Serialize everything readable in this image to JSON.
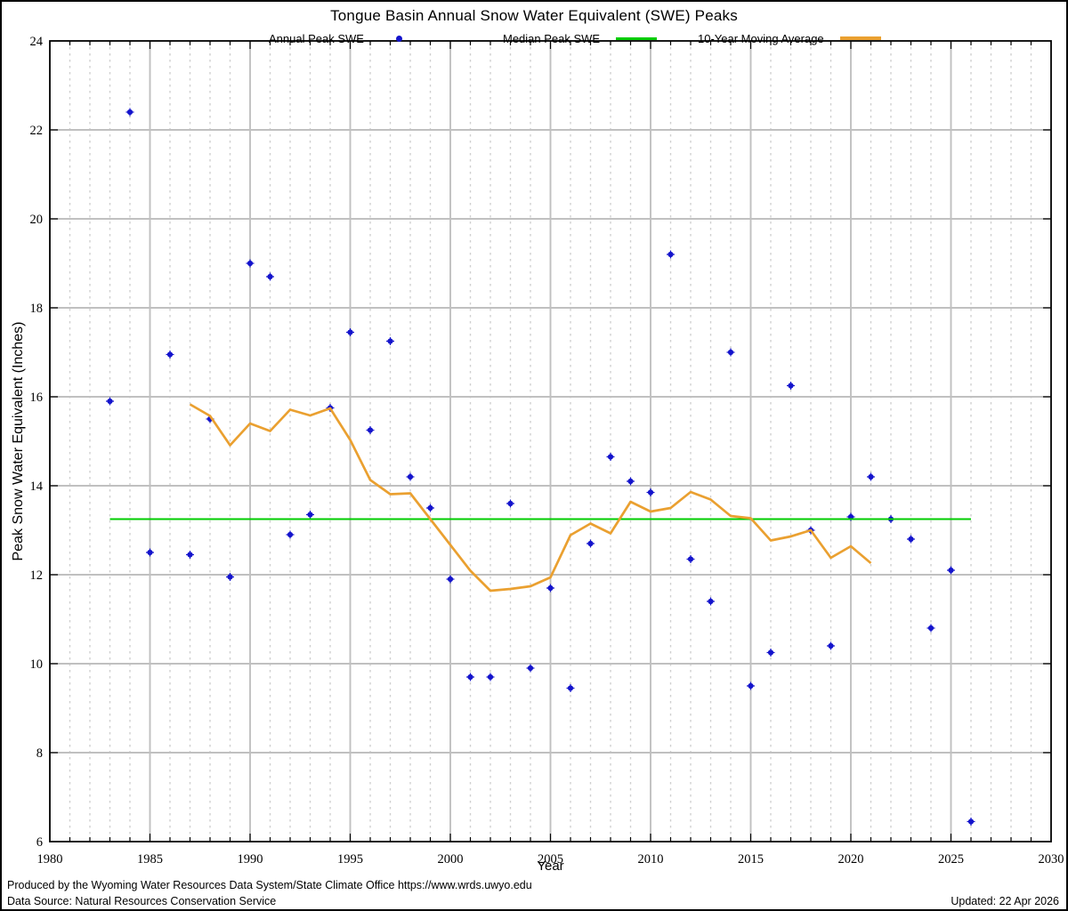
{
  "chart_data": {
    "type": "scatter",
    "title": "Tongue Basin Annual Snow Water Equivalent (SWE) Peaks",
    "xlabel": "Year",
    "ylabel": "Peak Snow Water Equivalent (Inches)",
    "xlim": [
      1980,
      2030
    ],
    "ylim": [
      6,
      24
    ],
    "x_tick_values": [
      1980,
      1985,
      1990,
      1995,
      2000,
      2005,
      2010,
      2015,
      2020,
      2025,
      2030
    ],
    "x_tick_labels": [
      "1980",
      "1985",
      "1990",
      "1995",
      "2000",
      "2005",
      "2010",
      "2015",
      "2020",
      "2025",
      "2030"
    ],
    "x_minor_tick_step": 1,
    "y_tick_values": [
      6,
      8,
      10,
      12,
      14,
      16,
      18,
      20,
      22,
      24
    ],
    "y_tick_labels": [
      "6",
      "8",
      "10",
      "12",
      "14",
      "16",
      "18",
      "20",
      "22",
      "24"
    ],
    "grid": {
      "x_minor": "dashed gray line every year",
      "x_major": "solid gray line every 5 years",
      "y_major": "solid gray line every 2 inches"
    },
    "legend": [
      {
        "label": "Annual Peak SWE",
        "marker": "point",
        "color": "#1414cc"
      },
      {
        "label": "Median Peak SWE",
        "marker": "line",
        "color": "#00cc00"
      },
      {
        "label": "10-Year Moving Average",
        "marker": "line",
        "color": "#eaa030"
      }
    ],
    "series": [
      {
        "name": "Annual Peak SWE",
        "type": "scatter",
        "color": "#1414cc",
        "years": [
          1983,
          1984,
          1985,
          1986,
          1987,
          1988,
          1989,
          1990,
          1991,
          1992,
          1993,
          1994,
          1995,
          1996,
          1997,
          1998,
          1999,
          2000,
          2001,
          2002,
          2003,
          2004,
          2005,
          2006,
          2007,
          2008,
          2009,
          2010,
          2011,
          2012,
          2013,
          2014,
          2015,
          2016,
          2017,
          2018,
          2019,
          2020,
          2021,
          2022,
          2023,
          2024,
          2025,
          2026
        ],
        "values": [
          15.9,
          22.4,
          12.5,
          16.95,
          12.45,
          15.5,
          11.95,
          19.0,
          18.7,
          12.9,
          13.35,
          15.75,
          17.45,
          15.25,
          17.25,
          14.2,
          13.5,
          11.9,
          9.7,
          9.7,
          13.6,
          9.9,
          11.7,
          9.45,
          12.7,
          14.65,
          14.1,
          13.85,
          19.2,
          12.35,
          11.4,
          17.0,
          9.5,
          10.25,
          16.25,
          13.0,
          10.4,
          13.3,
          14.2,
          13.25,
          12.8,
          10.8,
          12.1,
          6.45
        ]
      },
      {
        "name": "Median Peak SWE",
        "type": "hline",
        "color": "#00cc00",
        "value": 13.25,
        "x_start": 1983,
        "x_end": 2026
      },
      {
        "name": "10-Year Moving Average",
        "type": "line",
        "color": "#eaa030",
        "years": [
          1987,
          1988,
          1989,
          1990,
          1991,
          1992,
          1993,
          1994,
          1995,
          1996,
          1997,
          1998,
          1999,
          2000,
          2001,
          2002,
          2003,
          2004,
          2005,
          2006,
          2007,
          2008,
          2009,
          2010,
          2011,
          2012,
          2013,
          2014,
          2015,
          2016,
          2017,
          2018,
          2019,
          2020,
          2021
        ],
        "values": [
          15.83,
          15.57,
          14.91,
          15.4,
          15.23,
          15.71,
          15.58,
          15.74,
          15.03,
          14.13,
          13.81,
          13.83,
          13.25,
          12.67,
          12.09,
          11.64,
          11.68,
          11.74,
          11.94,
          12.89,
          13.15,
          12.93,
          13.64,
          13.42,
          13.5,
          13.86,
          13.69,
          13.32,
          13.27,
          12.77,
          12.86,
          13.0,
          12.38,
          12.64,
          12.26
        ]
      }
    ]
  },
  "footer": {
    "produced_by": "Produced by the Wyoming Water Resources Data System/State Climate Office https://www.wrds.uwyo.edu",
    "data_source": "Data Source: Natural Resources Conservation Service",
    "updated": "Updated: 22 Apr 2026"
  }
}
